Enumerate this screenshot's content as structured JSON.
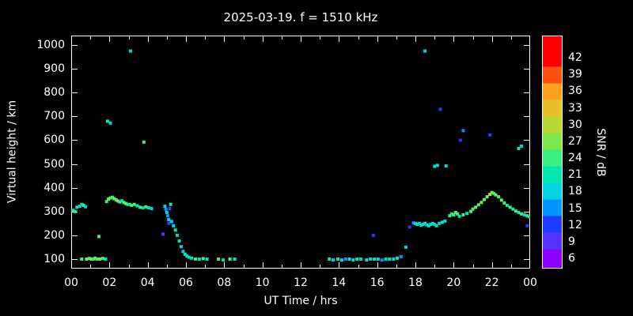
{
  "title": "2025-03-19. f = 1510 kHz",
  "chart_data": {
    "type": "scatter",
    "title": "2025-03-19. f = 1510 kHz",
    "xlabel": "UT Time / hrs",
    "ylabel": "Virtual height / km",
    "colorbar_label": "SNR / dB",
    "xlim": [
      0,
      24
    ],
    "ylim": [
      60,
      1040
    ],
    "grid": false,
    "x_tick_values": [
      0,
      2,
      4,
      6,
      8,
      10,
      12,
      14,
      16,
      18,
      20,
      22,
      24
    ],
    "x_tick_labels": [
      "00",
      "02",
      "04",
      "06",
      "08",
      "10",
      "12",
      "14",
      "16",
      "18",
      "20",
      "22",
      "00"
    ],
    "y_tick_values": [
      100,
      200,
      300,
      400,
      500,
      600,
      700,
      800,
      900,
      1000
    ],
    "y_tick_labels": [
      "100",
      "200",
      "300",
      "400",
      "500",
      "600",
      "700",
      "800",
      "900",
      "1000"
    ],
    "colorbar": {
      "tick_values": [
        6,
        9,
        12,
        15,
        18,
        21,
        24,
        27,
        30,
        33,
        36,
        39,
        42
      ],
      "stops": [
        {
          "value": 6,
          "color": "#8b00ff"
        },
        {
          "value": 9,
          "color": "#5533ff"
        },
        {
          "value": 12,
          "color": "#1f3cff"
        },
        {
          "value": 15,
          "color": "#0095ff"
        },
        {
          "value": 18,
          "color": "#00d4e0"
        },
        {
          "value": 21,
          "color": "#00e8b0"
        },
        {
          "value": 24,
          "color": "#3cf080"
        },
        {
          "value": 27,
          "color": "#7ce84a"
        },
        {
          "value": 30,
          "color": "#b8d832"
        },
        {
          "value": 33,
          "color": "#e8c02a"
        },
        {
          "value": 36,
          "color": "#ffa020"
        },
        {
          "value": 39,
          "color": "#ff5010"
        },
        {
          "value": 42,
          "color": "#ff0000"
        }
      ]
    },
    "background_color": "#000000",
    "axis_color": "#ffffff",
    "points_format": [
      "ut_hours",
      "virtual_height_km",
      "snr_db"
    ],
    "points": [
      [
        0.1,
        305,
        21
      ],
      [
        0.2,
        300,
        24
      ],
      [
        0.3,
        318,
        21
      ],
      [
        0.45,
        322,
        18
      ],
      [
        0.55,
        330,
        21
      ],
      [
        0.55,
        100,
        24
      ],
      [
        0.65,
        326,
        24
      ],
      [
        0.75,
        320,
        18
      ],
      [
        0.8,
        100,
        27
      ],
      [
        0.95,
        103,
        24
      ],
      [
        1.05,
        100,
        27
      ],
      [
        1.15,
        100,
        24
      ],
      [
        1.25,
        104,
        27
      ],
      [
        1.35,
        100,
        24
      ],
      [
        1.45,
        195,
        24
      ],
      [
        1.5,
        100,
        27
      ],
      [
        1.65,
        103,
        24
      ],
      [
        1.8,
        100,
        21
      ],
      [
        1.85,
        342,
        24
      ],
      [
        1.9,
        680,
        21
      ],
      [
        1.95,
        352,
        27
      ],
      [
        2.05,
        672,
        18
      ],
      [
        2.05,
        357,
        24
      ],
      [
        2.15,
        360,
        24
      ],
      [
        2.25,
        354,
        27
      ],
      [
        2.35,
        349,
        24
      ],
      [
        2.45,
        344,
        27
      ],
      [
        2.55,
        340,
        24
      ],
      [
        2.65,
        345,
        21
      ],
      [
        2.75,
        338,
        24
      ],
      [
        2.85,
        334,
        27
      ],
      [
        2.95,
        330,
        24
      ],
      [
        3.05,
        330,
        21
      ],
      [
        3.1,
        975,
        18
      ],
      [
        3.15,
        326,
        24
      ],
      [
        3.3,
        330,
        24
      ],
      [
        3.45,
        324,
        21
      ],
      [
        3.6,
        318,
        24
      ],
      [
        3.75,
        315,
        21
      ],
      [
        3.8,
        592,
        24
      ],
      [
        3.9,
        320,
        24
      ],
      [
        4.05,
        316,
        21
      ],
      [
        4.2,
        312,
        18
      ],
      [
        4.8,
        205,
        9
      ],
      [
        4.9,
        322,
        18
      ],
      [
        4.95,
        310,
        15
      ],
      [
        5.0,
        296,
        18
      ],
      [
        5.05,
        282,
        15
      ],
      [
        5.1,
        266,
        18
      ],
      [
        5.1,
        250,
        12
      ],
      [
        5.15,
        312,
        9
      ],
      [
        5.2,
        330,
        21
      ],
      [
        5.25,
        258,
        18
      ],
      [
        5.35,
        240,
        18
      ],
      [
        5.45,
        222,
        21
      ],
      [
        5.55,
        200,
        18
      ],
      [
        5.65,
        176,
        21
      ],
      [
        5.75,
        152,
        18
      ],
      [
        5.85,
        132,
        18
      ],
      [
        5.95,
        120,
        21
      ],
      [
        6.05,
        113,
        18
      ],
      [
        6.15,
        108,
        21
      ],
      [
        6.3,
        104,
        21
      ],
      [
        6.5,
        100,
        24
      ],
      [
        6.7,
        100,
        21
      ],
      [
        6.9,
        102,
        24
      ],
      [
        7.1,
        100,
        21
      ],
      [
        7.7,
        100,
        24
      ],
      [
        7.95,
        96,
        21
      ],
      [
        8.3,
        100,
        24
      ],
      [
        8.55,
        100,
        21
      ],
      [
        13.5,
        100,
        21
      ],
      [
        13.7,
        96,
        18
      ],
      [
        13.95,
        100,
        21
      ],
      [
        14.15,
        96,
        18
      ],
      [
        14.35,
        100,
        15
      ],
      [
        14.55,
        100,
        21
      ],
      [
        14.75,
        96,
        18
      ],
      [
        14.95,
        100,
        21
      ],
      [
        15.15,
        100,
        18
      ],
      [
        15.45,
        96,
        21
      ],
      [
        15.65,
        100,
        18
      ],
      [
        15.8,
        200,
        12
      ],
      [
        15.85,
        100,
        21
      ],
      [
        16.05,
        100,
        18
      ],
      [
        16.25,
        96,
        15
      ],
      [
        16.45,
        100,
        18
      ],
      [
        16.65,
        100,
        21
      ],
      [
        16.85,
        100,
        18
      ],
      [
        17.05,
        104,
        21
      ],
      [
        17.25,
        110,
        15
      ],
      [
        17.5,
        150,
        18
      ],
      [
        17.7,
        235,
        12
      ],
      [
        17.9,
        252,
        15
      ],
      [
        18.0,
        250,
        18
      ],
      [
        18.1,
        246,
        21
      ],
      [
        18.2,
        250,
        18
      ],
      [
        18.3,
        242,
        21
      ],
      [
        18.4,
        246,
        18
      ],
      [
        18.5,
        250,
        21
      ],
      [
        18.5,
        975,
        18
      ],
      [
        18.6,
        244,
        18
      ],
      [
        18.7,
        240,
        21
      ],
      [
        18.8,
        246,
        18
      ],
      [
        18.9,
        250,
        21
      ],
      [
        19.0,
        246,
        18
      ],
      [
        19.0,
        490,
        18
      ],
      [
        19.1,
        240,
        21
      ],
      [
        19.15,
        494,
        21
      ],
      [
        19.25,
        250,
        18
      ],
      [
        19.3,
        730,
        12
      ],
      [
        19.4,
        255,
        21
      ],
      [
        19.55,
        260,
        18
      ],
      [
        19.6,
        492,
        18
      ],
      [
        19.8,
        282,
        24
      ],
      [
        19.9,
        290,
        21
      ],
      [
        20.0,
        286,
        24
      ],
      [
        20.1,
        296,
        27
      ],
      [
        20.2,
        290,
        24
      ],
      [
        20.3,
        280,
        21
      ],
      [
        20.35,
        600,
        12
      ],
      [
        20.5,
        286,
        24
      ],
      [
        20.5,
        640,
        15
      ],
      [
        20.7,
        292,
        21
      ],
      [
        20.9,
        300,
        24
      ],
      [
        21.0,
        310,
        24
      ],
      [
        21.15,
        318,
        27
      ],
      [
        21.3,
        328,
        24
      ],
      [
        21.45,
        338,
        27
      ],
      [
        21.6,
        350,
        24
      ],
      [
        21.75,
        362,
        27
      ],
      [
        21.9,
        372,
        30
      ],
      [
        21.9,
        622,
        12
      ],
      [
        22.0,
        380,
        27
      ],
      [
        22.1,
        376,
        24
      ],
      [
        22.2,
        370,
        27
      ],
      [
        22.35,
        362,
        24
      ],
      [
        22.5,
        348,
        27
      ],
      [
        22.65,
        336,
        24
      ],
      [
        22.8,
        326,
        21
      ],
      [
        22.95,
        318,
        24
      ],
      [
        23.1,
        310,
        21
      ],
      [
        23.25,
        302,
        24
      ],
      [
        23.4,
        296,
        21
      ],
      [
        23.4,
        565,
        21
      ],
      [
        23.55,
        290,
        24
      ],
      [
        23.55,
        575,
        18
      ],
      [
        23.7,
        286,
        21
      ],
      [
        23.85,
        282,
        24
      ],
      [
        23.85,
        240,
        12
      ],
      [
        23.95,
        278,
        21
      ]
    ]
  }
}
